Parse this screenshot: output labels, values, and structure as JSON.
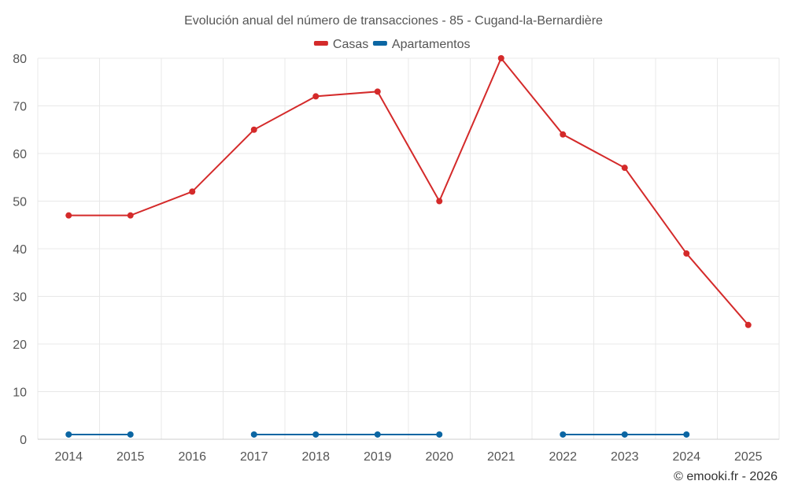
{
  "chart_data": {
    "type": "line",
    "title": "Evolución anual del número de transacciones - 85 - Cugand-la-Bernardière",
    "categories": [
      "2014",
      "2015",
      "2016",
      "2017",
      "2018",
      "2019",
      "2020",
      "2021",
      "2022",
      "2023",
      "2024",
      "2025"
    ],
    "series": [
      {
        "name": "Casas",
        "color": "#d42a2a",
        "values": [
          47,
          47,
          52,
          65,
          72,
          73,
          50,
          80,
          64,
          57,
          39,
          24
        ]
      },
      {
        "name": "Apartamentos",
        "color": "#0b66a3",
        "values": [
          1,
          1,
          null,
          1,
          1,
          1,
          1,
          null,
          1,
          1,
          1,
          null
        ]
      }
    ],
    "ylim": [
      0,
      80
    ],
    "yticks": [
      0,
      10,
      20,
      30,
      40,
      50,
      60,
      70,
      80
    ],
    "grid": true,
    "legend_position": "top-center",
    "xlabel": "",
    "ylabel": ""
  },
  "credit": "© emooki.fr - 2026"
}
